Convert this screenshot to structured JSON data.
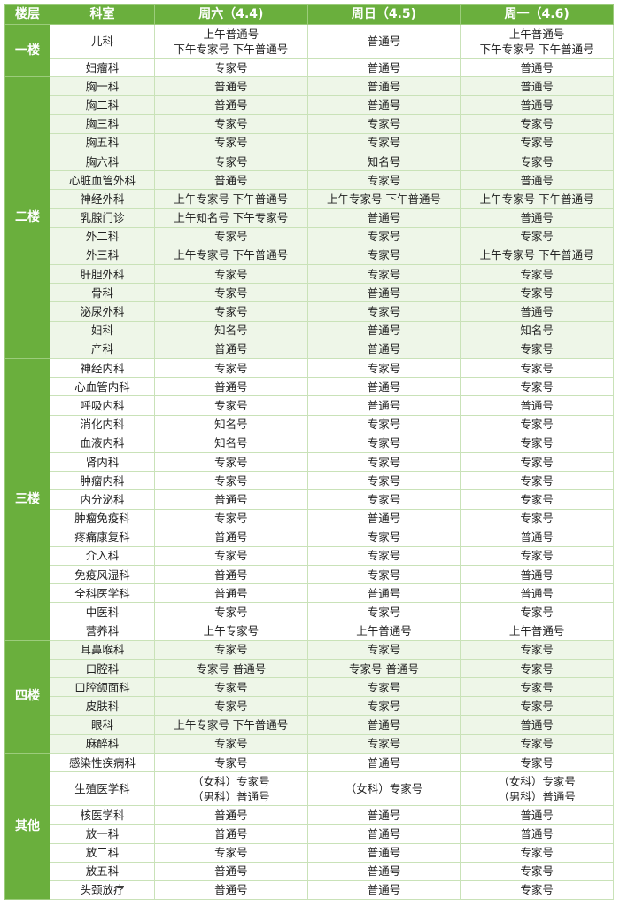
{
  "headers": [
    "楼层",
    "科室",
    "周六（4.4)",
    "周日（4.5)",
    "周一（4.6)"
  ],
  "colors": {
    "header_green": "#6aaf3d",
    "alt_row": "#eef6e8"
  },
  "floors": [
    {
      "name": "一楼",
      "rows": [
        [
          "儿科",
          "上午普通号\n下午专家号 下午普通号",
          "普通号",
          "上午普通号\n下午专家号 下午普通号"
        ],
        [
          "妇瘤科",
          "专家号",
          "普通号",
          "普通号"
        ]
      ]
    },
    {
      "name": "二楼",
      "rows": [
        [
          "胸一科",
          "普通号",
          "普通号",
          "普通号"
        ],
        [
          "胸二科",
          "普通号",
          "普通号",
          "普通号"
        ],
        [
          "胸三科",
          "专家号",
          "专家号",
          "专家号"
        ],
        [
          "胸五科",
          "专家号",
          "专家号",
          "专家号"
        ],
        [
          "胸六科",
          "专家号",
          "知名号",
          "专家号"
        ],
        [
          "心脏血管外科",
          "普通号",
          "专家号",
          "普通号"
        ],
        [
          "神经外科",
          "上午专家号 下午普通号",
          "上午专家号 下午普通号",
          "上午专家号 下午普通号"
        ],
        [
          "乳腺门诊",
          "上午知名号 下午专家号",
          "普通号",
          "普通号"
        ],
        [
          "外二科",
          "专家号",
          "专家号",
          "专家号"
        ],
        [
          "外三科",
          "上午专家号 下午普通号",
          "专家号",
          "上午专家号 下午普通号"
        ],
        [
          "肝胆外科",
          "专家号",
          "专家号",
          "专家号"
        ],
        [
          "骨科",
          "专家号",
          "普通号",
          "专家号"
        ],
        [
          "泌尿外科",
          "专家号",
          "专家号",
          "普通号"
        ],
        [
          "妇科",
          "知名号",
          "普通号",
          "知名号"
        ],
        [
          "产科",
          "普通号",
          "普通号",
          "专家号"
        ]
      ]
    },
    {
      "name": "三楼",
      "rows": [
        [
          "神经内科",
          "专家号",
          "专家号",
          "专家号"
        ],
        [
          "心血管内科",
          "普通号",
          "普通号",
          "专家号"
        ],
        [
          "呼吸内科",
          "专家号",
          "普通号",
          "普通号"
        ],
        [
          "消化内科",
          "知名号",
          "专家号",
          "专家号"
        ],
        [
          "血液内科",
          "知名号",
          "专家号",
          "专家号"
        ],
        [
          "肾内科",
          "专家号",
          "专家号",
          "专家号"
        ],
        [
          "肿瘤内科",
          "专家号",
          "专家号",
          "专家号"
        ],
        [
          "内分泌科",
          "普通号",
          "专家号",
          "专家号"
        ],
        [
          "肿瘤免疫科",
          "专家号",
          "普通号",
          "专家号"
        ],
        [
          "疼痛康复科",
          "普通号",
          "专家号",
          "普通号"
        ],
        [
          "介入科",
          "专家号",
          "专家号",
          "专家号"
        ],
        [
          "免疫风湿科",
          "普通号",
          "专家号",
          "普通号"
        ],
        [
          "全科医学科",
          "普通号",
          "普通号",
          "普通号"
        ],
        [
          "中医科",
          "专家号",
          "专家号",
          "专家号"
        ],
        [
          "营养科",
          "上午专家号",
          "上午普通号",
          "上午普通号"
        ]
      ]
    },
    {
      "name": "四楼",
      "rows": [
        [
          "耳鼻喉科",
          "专家号",
          "专家号",
          "专家号"
        ],
        [
          "口腔科",
          "专家号 普通号",
          "专家号 普通号",
          "专家号"
        ],
        [
          "口腔颌面科",
          "专家号",
          "专家号",
          "专家号"
        ],
        [
          "皮肤科",
          "专家号",
          "专家号",
          "专家号"
        ],
        [
          "眼科",
          "上午专家号 下午普通号",
          "普通号",
          "普通号"
        ],
        [
          "麻醉科",
          "专家号",
          "专家号",
          "专家号"
        ]
      ]
    },
    {
      "name": "其他",
      "rows": [
        [
          "感染性疾病科",
          "专家号",
          "普通号",
          "专家号"
        ],
        [
          "生殖医学科",
          "（女科）专家号\n（男科）普通号",
          "（女科）专家号",
          "（女科）专家号\n（男科）普通号"
        ],
        [
          "核医学科",
          "普通号",
          "普通号",
          "普通号"
        ],
        [
          "放一科",
          "普通号",
          "普通号",
          "普通号"
        ],
        [
          "放二科",
          "专家号",
          "普通号",
          "专家号"
        ],
        [
          "放五科",
          "普通号",
          "普通号",
          "专家号"
        ],
        [
          "头颈放疗",
          "普通号",
          "普通号",
          "专家号"
        ]
      ]
    }
  ]
}
